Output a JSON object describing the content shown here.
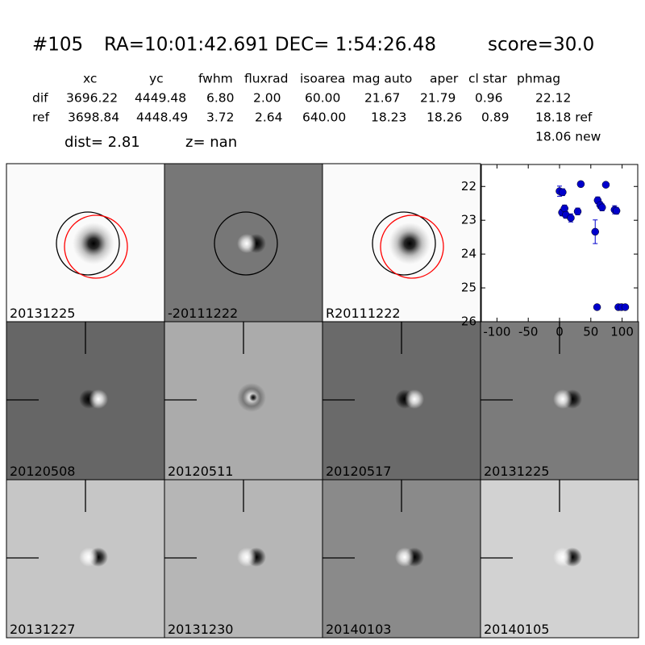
{
  "header": {
    "id": "#105",
    "coords": "RA=10:01:42.691 DEC= 1:54:26.48",
    "score": "score=30.0"
  },
  "table": {
    "columns": [
      "xc",
      "yc",
      "fwhm",
      "fluxrad",
      "isoarea",
      "mag auto",
      "aper",
      "cl star",
      "phmag"
    ],
    "rows": [
      [
        "dif",
        "3696.22",
        "4449.48",
        "6.80",
        "2.00",
        "60.00",
        "21.67",
        "21.79",
        "0.96",
        "22.12"
      ],
      [
        "ref",
        "3698.84",
        "4448.49",
        "3.72",
        "2.64",
        "640.00",
        "18.23",
        "18.26",
        "0.89",
        "18.18 ref"
      ]
    ],
    "extra": "18.06 new"
  },
  "dist": "dist=  2.81",
  "z": "z=   nan",
  "stamps": [
    {
      "label": "20131225",
      "color": "#000000"
    },
    {
      "label": "-20111222",
      "color": "#000000"
    },
    {
      "label": "R20111222",
      "color": "#000000"
    },
    {
      "label": "20120508",
      "color": "#000000"
    },
    {
      "label": "20120511",
      "color": "#000000"
    },
    {
      "label": "20120517",
      "color": "#000000"
    },
    {
      "label": "20131225",
      "color": "#ff0000"
    },
    {
      "label": "20131227",
      "color": "#000000"
    },
    {
      "label": "20131230",
      "color": "#000000"
    },
    {
      "label": "20140103",
      "color": "#000000"
    },
    {
      "label": "20140105",
      "color": "#000000"
    }
  ],
  "chart_data": {
    "type": "scatter",
    "color": "#0000cc",
    "x": [
      0,
      5,
      4,
      8,
      10,
      18,
      29,
      34,
      57,
      61,
      65,
      68,
      74,
      88,
      91,
      60,
      94,
      99,
      105
    ],
    "values": [
      22.14,
      22.17,
      22.77,
      22.65,
      22.84,
      22.93,
      22.74,
      21.93,
      23.34,
      22.41,
      22.55,
      22.62,
      21.95,
      22.69,
      22.72,
      25.57,
      25.57,
      25.57,
      25.57
    ],
    "errors": [
      0.15,
      0.1,
      0.1,
      0.1,
      0.1,
      0.12,
      0.1,
      0.08,
      0.35,
      0.1,
      0.1,
      0.1,
      0.06,
      0.12,
      0.1,
      0.05,
      0.05,
      0.05,
      0.05
    ],
    "xlim": [
      -125,
      125
    ],
    "ylim": [
      26,
      21.35
    ],
    "xticks": [
      -100,
      -50,
      0,
      50,
      100
    ],
    "yticks": [
      22,
      23,
      24,
      25,
      26
    ]
  }
}
